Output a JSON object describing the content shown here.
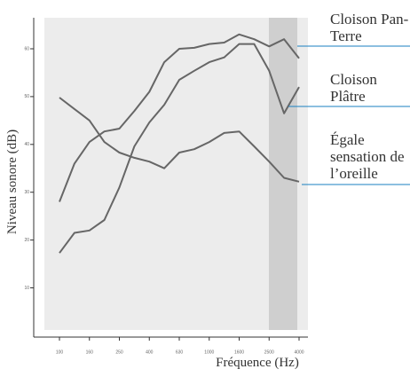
{
  "chart_data": {
    "type": "line",
    "x_label": "Fréquence (Hz)",
    "y_label": "Niveau sonore (dB)",
    "categories": [
      "100",
      null,
      "160",
      null,
      "250",
      null,
      "400",
      null,
      "630",
      null,
      "1000",
      null,
      "1600",
      null,
      "2500",
      null,
      "4000"
    ],
    "ylim": [
      0,
      60
    ],
    "yticks": [
      10,
      20,
      30,
      40,
      50,
      60
    ],
    "series": [
      {
        "name": "Cloison Pan-Terre",
        "color": "#666666",
        "values": [
          28,
          36,
          40.5,
          42.7,
          43.3,
          47,
          51,
          57.2,
          60,
          60.2,
          61,
          61.3,
          63,
          62,
          60.5,
          62,
          58
        ]
      },
      {
        "name": "Cloison Plâtre",
        "color": "#666666",
        "values": [
          17.3,
          21.5,
          22,
          24.2,
          31,
          39.6,
          44.6,
          48.3,
          53.5,
          55.4,
          57.2,
          58.2,
          61,
          61,
          55.4,
          46.5,
          52
        ]
      },
      {
        "name": "Égale sensation de l’oreille",
        "color": "#666666",
        "values": [
          49.8,
          47.4,
          45,
          40.5,
          38.3,
          37.2,
          36.4,
          35,
          38.3,
          39,
          40.5,
          42.4,
          42.7,
          39.6,
          36.4,
          33,
          32.2
        ]
      }
    ]
  }
}
